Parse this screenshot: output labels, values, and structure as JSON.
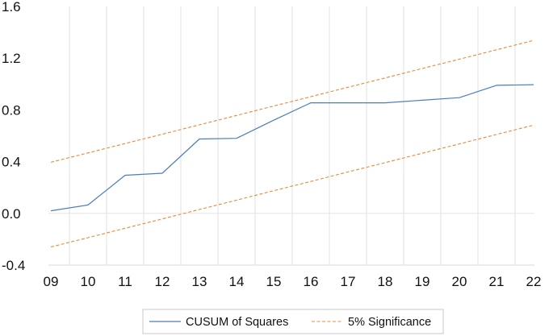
{
  "chart_data": {
    "type": "line",
    "title": "",
    "xlabel": "",
    "ylabel": "",
    "categories": [
      "09",
      "10",
      "11",
      "12",
      "13",
      "14",
      "15",
      "16",
      "17",
      "18",
      "19",
      "20",
      "21",
      "22"
    ],
    "ylim": [
      -0.4,
      1.6
    ],
    "yticks": [
      "-0.4",
      "0.0",
      "0.4",
      "0.8",
      "1.2",
      "1.6"
    ],
    "grid": "vertical",
    "legend_position": "bottom",
    "series": [
      {
        "name": "CUSUM of Squares",
        "color": "#4a7ebb",
        "style": "solid",
        "values": [
          0.02,
          0.065,
          0.295,
          0.31,
          0.575,
          0.58,
          0.72,
          0.855,
          0.855,
          0.855,
          0.875,
          0.895,
          0.99,
          0.995
        ]
      },
      {
        "name": "5% Significance",
        "color": "#e8893a",
        "style": "dashed",
        "values": [
          0.395,
          0.467,
          0.54,
          0.612,
          0.685,
          0.757,
          0.83,
          0.902,
          0.975,
          1.047,
          1.12,
          1.192,
          1.265,
          1.337
        ]
      },
      {
        "name": "5% Significance",
        "color": "#e8893a",
        "style": "dashed",
        "show_in_legend": false,
        "values": [
          -0.26,
          -0.188,
          -0.115,
          -0.043,
          0.03,
          0.102,
          0.175,
          0.247,
          0.32,
          0.392,
          0.465,
          0.537,
          0.61,
          0.682
        ]
      }
    ]
  }
}
